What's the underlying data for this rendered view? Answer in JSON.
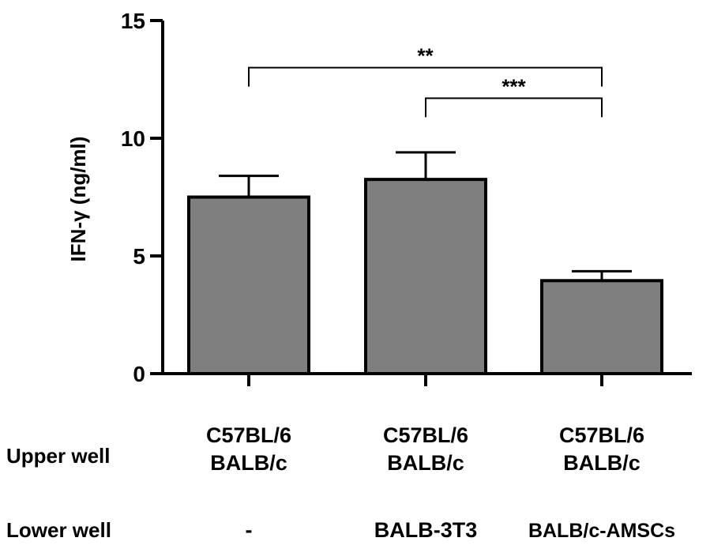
{
  "chart_data": {
    "type": "bar",
    "title": "",
    "ylabel": "IFN-γ (ng/ml)",
    "ylim": [
      0,
      15
    ],
    "yticks": [
      0,
      5,
      10,
      15
    ],
    "categories": [
      "C57BL/6 BALB/c | -",
      "C57BL/6 BALB/c | BALB-3T3",
      "C57BL/6 BALB/c | BALB/c-AMSCs"
    ],
    "values": [
      7.5,
      8.25,
      3.95
    ],
    "errors": [
      0.9,
      1.15,
      0.4
    ],
    "bar_color": "#7f7f7f",
    "row_labels": {
      "upper": "Upper well",
      "lower": "Lower well"
    },
    "upper_well": [
      [
        "C57BL/6",
        "BALB/c"
      ],
      [
        "C57BL/6",
        "BALB/c"
      ],
      [
        "C57BL/6",
        "BALB/c"
      ]
    ],
    "lower_well": [
      "-",
      "BALB-3T3",
      "BALB/c-AMSCs"
    ],
    "significance": [
      {
        "from": 0,
        "to": 2,
        "y": 13,
        "label": "**"
      },
      {
        "from": 1,
        "to": 2,
        "y": 11.7,
        "label": "***"
      }
    ]
  }
}
